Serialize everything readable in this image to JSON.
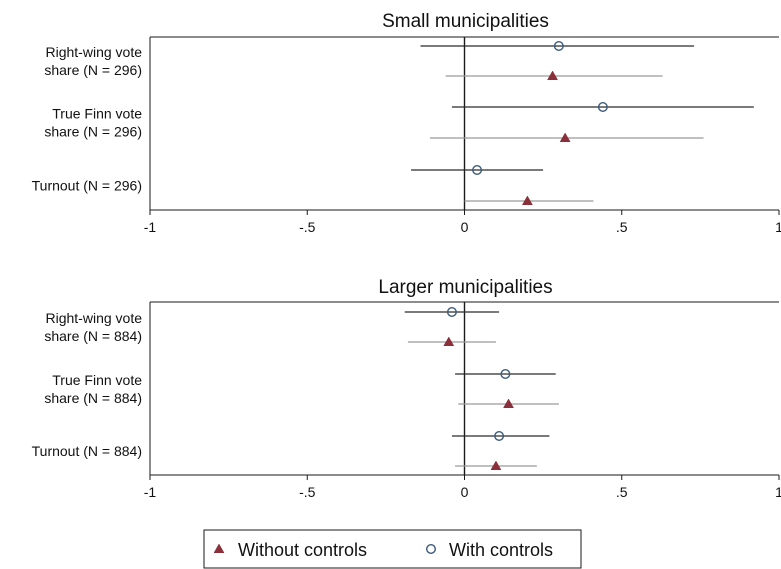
{
  "chart_data": [
    {
      "type": "scatter",
      "title": "Small municipalities",
      "xlim": [
        -1,
        1
      ],
      "xticks": [
        -1,
        -0.5,
        0,
        0.5,
        1
      ],
      "xticklabels": [
        "-1",
        "-.5",
        "0",
        ".5",
        "1"
      ],
      "zero_line": 0,
      "grid": false,
      "categories": [
        {
          "label": [
            "Right-wing vote",
            "share (N = 296)"
          ]
        },
        {
          "label": [
            "True Finn vote",
            "share (N = 296)"
          ]
        },
        {
          "label": [
            "Turnout (N = 296)"
          ]
        }
      ],
      "series": [
        {
          "name": "With controls",
          "marker": "circle",
          "color": "#3b5a7c",
          "points": [
            {
              "estimate": 0.3,
              "ci": [
                -0.14,
                0.73
              ]
            },
            {
              "estimate": 0.44,
              "ci": [
                -0.04,
                0.92
              ]
            },
            {
              "estimate": 0.04,
              "ci": [
                -0.17,
                0.25
              ]
            }
          ]
        },
        {
          "name": "Without controls",
          "marker": "triangle",
          "color": "#8b2f3a",
          "points": [
            {
              "estimate": 0.28,
              "ci": [
                -0.06,
                0.63
              ]
            },
            {
              "estimate": 0.32,
              "ci": [
                -0.11,
                0.76
              ]
            },
            {
              "estimate": 0.2,
              "ci": [
                0.0,
                0.41
              ]
            }
          ]
        }
      ]
    },
    {
      "type": "scatter",
      "title": "Larger municipalities",
      "xlim": [
        -1,
        1
      ],
      "xticks": [
        -1,
        -0.5,
        0,
        0.5,
        1
      ],
      "xticklabels": [
        "-1",
        "-.5",
        "0",
        ".5",
        "1"
      ],
      "zero_line": 0,
      "grid": false,
      "categories": [
        {
          "label": [
            "Right-wing vote",
            "share (N = 884)"
          ]
        },
        {
          "label": [
            "True Finn vote",
            "share (N = 884)"
          ]
        },
        {
          "label": [
            "Turnout (N = 884)"
          ]
        }
      ],
      "series": [
        {
          "name": "With controls",
          "marker": "circle",
          "color": "#3b5a7c",
          "points": [
            {
              "estimate": -0.04,
              "ci": [
                -0.19,
                0.11
              ]
            },
            {
              "estimate": 0.13,
              "ci": [
                -0.03,
                0.29
              ]
            },
            {
              "estimate": 0.11,
              "ci": [
                -0.04,
                0.27
              ]
            }
          ]
        },
        {
          "name": "Without controls",
          "marker": "triangle",
          "color": "#8b2f3a",
          "points": [
            {
              "estimate": -0.05,
              "ci": [
                -0.18,
                0.1
              ]
            },
            {
              "estimate": 0.14,
              "ci": [
                -0.02,
                0.3
              ]
            },
            {
              "estimate": 0.1,
              "ci": [
                -0.03,
                0.23
              ]
            }
          ]
        }
      ]
    }
  ],
  "legend": {
    "placement": "bottom-center",
    "items": [
      {
        "label": "Without controls",
        "marker": "triangle",
        "color": "#8b2f3a"
      },
      {
        "label": "With controls",
        "marker": "circle",
        "color": "#3b5a7c"
      }
    ]
  }
}
